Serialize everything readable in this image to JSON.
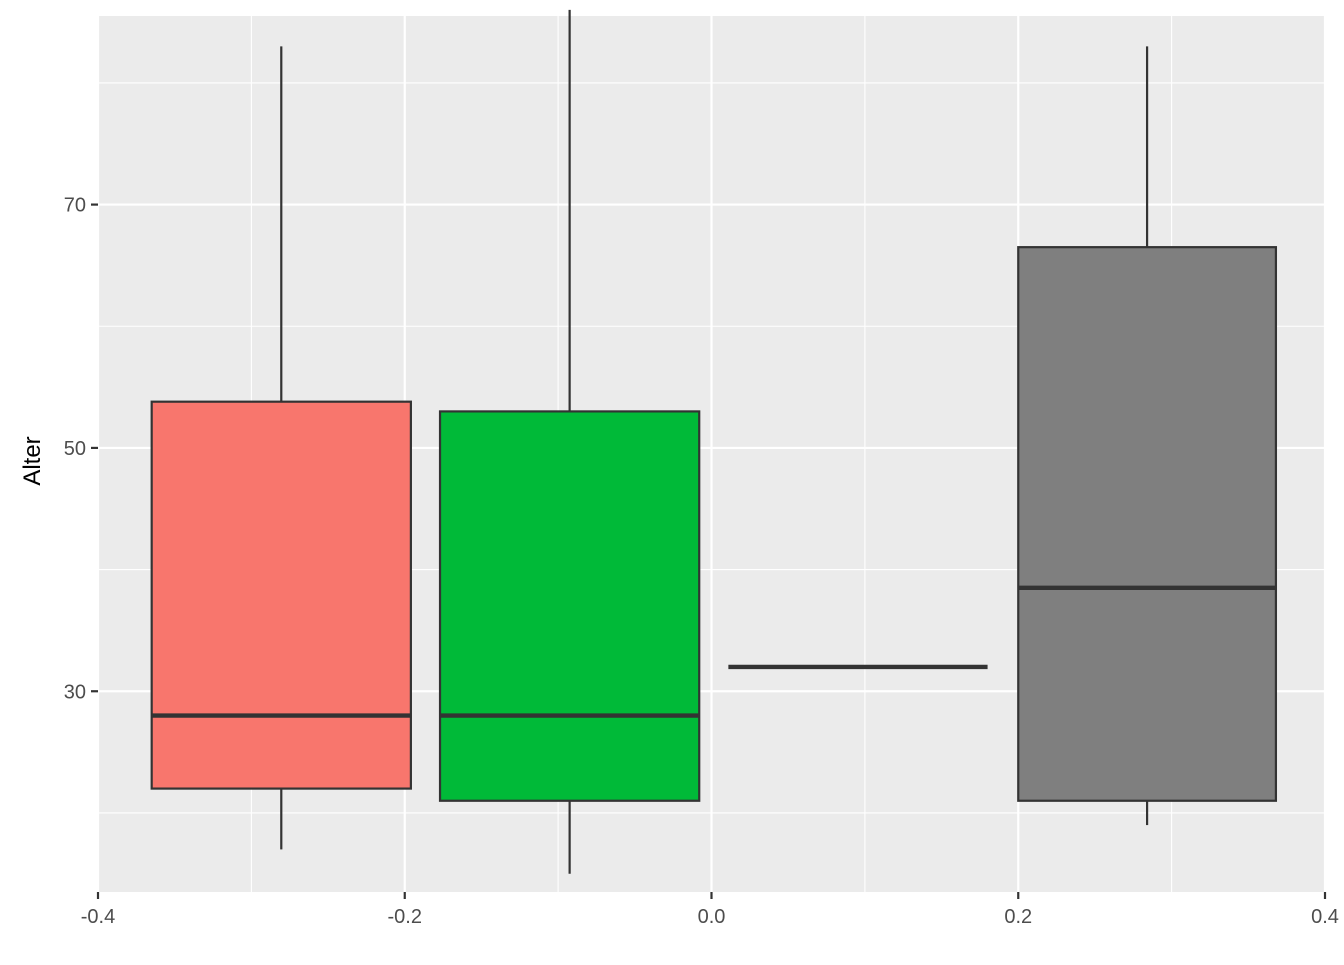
{
  "chart_data": {
    "type": "boxplot",
    "title": "",
    "xlabel": "",
    "ylabel": "Alter",
    "xlim": [
      -0.4,
      0.4
    ],
    "ylim": [
      13.5,
      85.5
    ],
    "x_ticks": [
      -0.4,
      -0.2,
      0.0,
      0.2,
      0.4
    ],
    "x_tick_labels": [
      "-0.4",
      "-0.2",
      "0.0",
      "0.2",
      "0.4"
    ],
    "y_ticks": [
      30,
      50,
      70
    ],
    "y_tick_labels": [
      "30",
      "50",
      "70"
    ],
    "y_minor_ticks": [
      20,
      40,
      60,
      80
    ],
    "x_minor_ticks": [
      -0.3,
      -0.1,
      0.1,
      0.3
    ],
    "grid": true,
    "legend": "none",
    "background_color": "#EBEBEB",
    "grid_color": "#FFFFFF",
    "outline_color": "#333333",
    "boxes": [
      {
        "color": "#F8766D",
        "x_min": -0.365,
        "x_max": -0.196,
        "whisker_low": 17,
        "q1": 22,
        "median": 28,
        "q3": 53.8,
        "whisker_high": 83
      },
      {
        "color": "#00BA38",
        "x_min": -0.177,
        "x_max": -0.008,
        "whisker_low": 15,
        "q1": 21,
        "median": 28,
        "q3": 53,
        "whisker_high": 86
      },
      {
        "color": "#619CFF",
        "x_min": 0.011,
        "x_max": 0.18,
        "whisker_low": 32,
        "q1": 32,
        "median": 32,
        "q3": 32,
        "whisker_high": 32
      },
      {
        "color": "#7F7F7F",
        "x_min": 0.2,
        "x_max": 0.368,
        "whisker_low": 19,
        "q1": 21,
        "median": 38.5,
        "q3": 66.5,
        "whisker_high": 83
      }
    ]
  }
}
